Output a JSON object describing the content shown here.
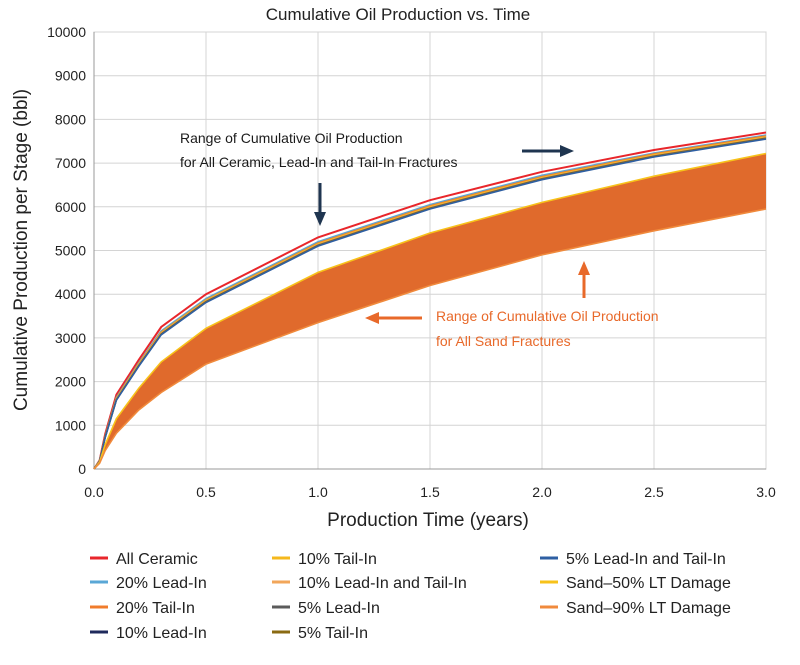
{
  "chart_data": {
    "type": "line",
    "title": "Cumulative Oil Production vs. Time",
    "xlabel": "Production Time (years)",
    "ylabel": "Cumulative Production per Stage (bbl)",
    "xlim": [
      0,
      3.0
    ],
    "ylim": [
      0,
      10000
    ],
    "xticks": [
      "0.0",
      "0.5",
      "1.0",
      "1.5",
      "2.0",
      "2.5",
      "3.0"
    ],
    "yticks": [
      "0",
      "1000",
      "2000",
      "3000",
      "4000",
      "5000",
      "6000",
      "7000",
      "8000",
      "9000",
      "10000"
    ],
    "grid": true,
    "x": [
      0,
      0.025,
      0.05,
      0.1,
      0.2,
      0.3,
      0.5,
      1.0,
      1.5,
      2.0,
      2.5,
      3.0
    ],
    "series": [
      {
        "name": "All Ceramic",
        "color": "#e8262b",
        "values": [
          0,
          200,
          800,
          1700,
          2500,
          3250,
          4000,
          5300,
          6150,
          6800,
          7300,
          7700
        ]
      },
      {
        "name": "20% Lead-In",
        "color": "#5aa7d6",
        "values": [
          0,
          190,
          760,
          1640,
          2430,
          3160,
          3900,
          5200,
          6050,
          6720,
          7230,
          7640
        ]
      },
      {
        "name": "20% Tail-In",
        "color": "#f07c2c",
        "values": [
          0,
          185,
          750,
          1620,
          2410,
          3130,
          3870,
          5170,
          6020,
          6690,
          7210,
          7620
        ]
      },
      {
        "name": "10% Lead-In",
        "color": "#1f2a5c",
        "values": [
          0,
          180,
          740,
          1600,
          2390,
          3110,
          3850,
          5140,
          5990,
          6660,
          7180,
          7590
        ]
      },
      {
        "name": "10% Tail-In",
        "color": "#f5b81c",
        "values": [
          0,
          182,
          745,
          1610,
          2400,
          3120,
          3860,
          5150,
          6000,
          6670,
          7190,
          7600
        ]
      },
      {
        "name": "10% Lead-In and Tail-In",
        "color": "#f2a65a",
        "values": [
          0,
          178,
          735,
          1590,
          2380,
          3100,
          3840,
          5130,
          5980,
          6650,
          7170,
          7580
        ]
      },
      {
        "name": "5% Lead-In",
        "color": "#5b5b5b",
        "values": [
          0,
          176,
          730,
          1585,
          2370,
          3090,
          3830,
          5120,
          5970,
          6640,
          7160,
          7570
        ]
      },
      {
        "name": "5% Tail-In",
        "color": "#8a6a12",
        "values": [
          0,
          174,
          725,
          1580,
          2360,
          3080,
          3820,
          5110,
          5960,
          6630,
          7150,
          7560
        ]
      },
      {
        "name": "5% Lead-In and Tail-In",
        "color": "#2e5fa3",
        "values": [
          0,
          172,
          720,
          1575,
          2350,
          3070,
          3810,
          5100,
          5950,
          6620,
          7140,
          7550
        ]
      },
      {
        "name": "Sand–50% LT Damage",
        "color": "#f7c21a",
        "values": [
          0,
          160,
          560,
          1150,
          1850,
          2450,
          3220,
          4500,
          5400,
          6100,
          6700,
          7220
        ]
      },
      {
        "name": "Sand–90% LT Damage",
        "color": "#f08a3c",
        "values": [
          0,
          130,
          420,
          820,
          1350,
          1750,
          2400,
          3350,
          4200,
          4900,
          5450,
          5950
        ]
      }
    ],
    "sand_band": {
      "upper": [
        0,
        160,
        560,
        1150,
        1850,
        2450,
        3220,
        4500,
        5400,
        6100,
        6700,
        7220
      ],
      "lower": [
        0,
        130,
        420,
        820,
        1350,
        1750,
        2400,
        3350,
        4200,
        4900,
        5450,
        5950
      ],
      "color": "#e06a2c"
    },
    "legend_placement": "bottom",
    "annotations": [
      {
        "id": "ceramic",
        "lines": [
          "Range of Cumulative Oil Production",
          "for All Ceramic, Lead-In and Tail-In Fractures"
        ],
        "color": "#1b1b1b",
        "arrow_color": "#1f3550"
      },
      {
        "id": "sand",
        "lines": [
          "Range of Cumulative Oil Production",
          "for All Sand Fractures"
        ],
        "color": "#e8692a",
        "arrow_color": "#e8692a"
      }
    ]
  }
}
